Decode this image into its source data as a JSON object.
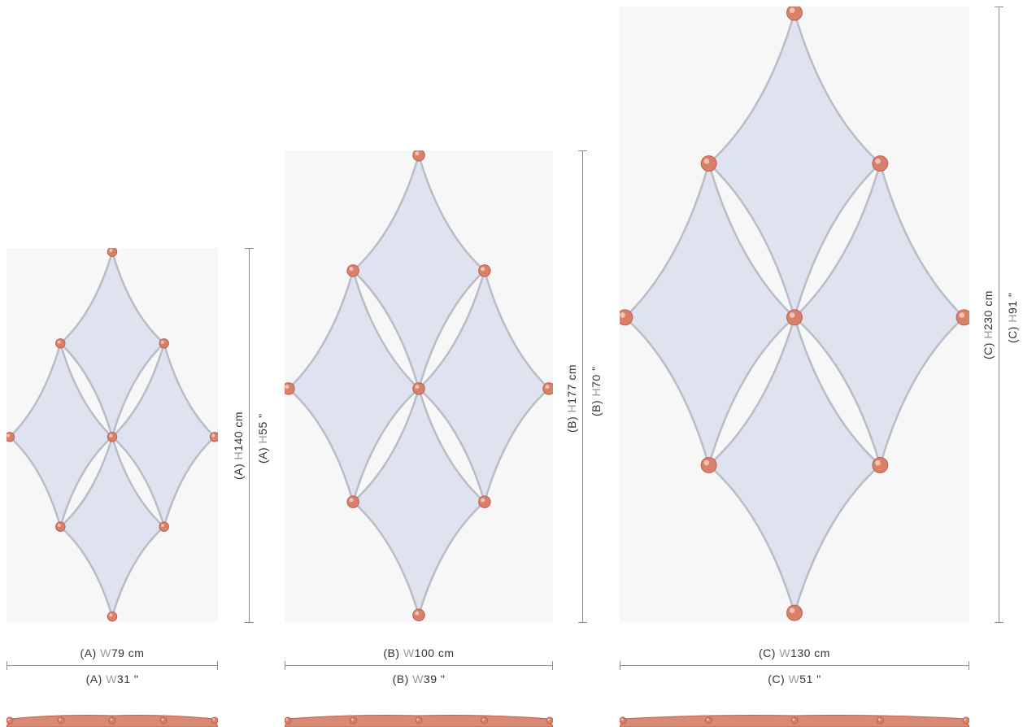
{
  "colors": {
    "glass": "#dfe3ef",
    "glass_stroke": "#b9bcc6",
    "panel_bg": "#f7f7f7",
    "bead": "#d9806a",
    "dim_line": "#8a8a8a"
  },
  "panels": [
    {
      "id": "A",
      "width_cm_prefix": "(A) ",
      "width_cm_letter": "W",
      "width_cm_value": "79 cm",
      "width_in_prefix": "(A) ",
      "width_in_letter": "W",
      "width_in_value": "31 \"",
      "height_cm_prefix": "(A) ",
      "height_cm_letter": "H",
      "height_cm_value": "140 cm",
      "height_in_prefix": "(A) ",
      "height_in_letter": "H",
      "height_in_value": "55 \""
    },
    {
      "id": "B",
      "width_cm_prefix": "(B) ",
      "width_cm_letter": "W",
      "width_cm_value": "100 cm",
      "width_in_prefix": "(B) ",
      "width_in_letter": "W",
      "width_in_value": "39 \"",
      "height_cm_prefix": "(B) ",
      "height_cm_letter": "H",
      "height_cm_value": "177 cm",
      "height_in_prefix": "(B) ",
      "height_in_letter": "H",
      "height_in_value": "70 \""
    },
    {
      "id": "C",
      "width_cm_prefix": "(C) ",
      "width_cm_letter": "W",
      "width_cm_value": "130 cm",
      "width_in_prefix": "(C) ",
      "width_in_letter": "W",
      "width_in_value": "51 \"",
      "height_cm_prefix": "(C) ",
      "height_cm_letter": "H",
      "height_cm_value": "230 cm",
      "height_in_prefix": "(C) ",
      "height_in_letter": "H",
      "height_in_value": "91 \""
    }
  ]
}
